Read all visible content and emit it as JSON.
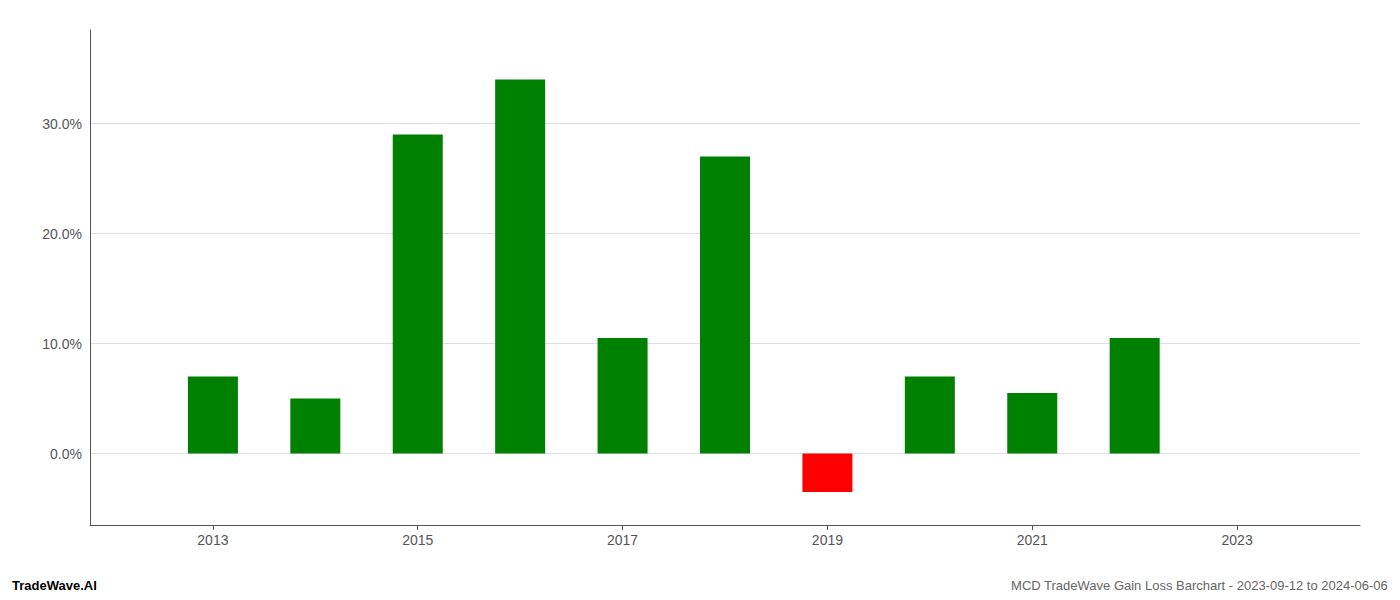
{
  "chart_data": {
    "type": "bar",
    "x": [
      2013,
      2014,
      2015,
      2016,
      2017,
      2018,
      2019,
      2020,
      2021,
      2022
    ],
    "values": [
      0.07,
      0.05,
      0.29,
      0.34,
      0.105,
      0.27,
      -0.035,
      0.07,
      0.055,
      0.105
    ],
    "colors": [
      "#008000",
      "#008000",
      "#008000",
      "#008000",
      "#008000",
      "#008000",
      "#ff0000",
      "#008000",
      "#008000",
      "#008000"
    ],
    "xlim": [
      2011.8,
      2024.2
    ],
    "xticks": [
      2013,
      2015,
      2017,
      2019,
      2021,
      2023
    ],
    "ylim": [
      -0.065,
      0.385
    ],
    "yticks": [
      {
        "value": 0,
        "label": "0.0%"
      },
      {
        "value": 0.1,
        "label": "10.0%"
      },
      {
        "value": 0.2,
        "label": "20.0%"
      },
      {
        "value": 0.3,
        "label": "30.0%"
      }
    ],
    "grid": true,
    "annotations": [
      "TradeWave.AI",
      "MCD TradeWave Gain Loss Barchart - 2023-09-12 to 2024-06-06"
    ]
  }
}
